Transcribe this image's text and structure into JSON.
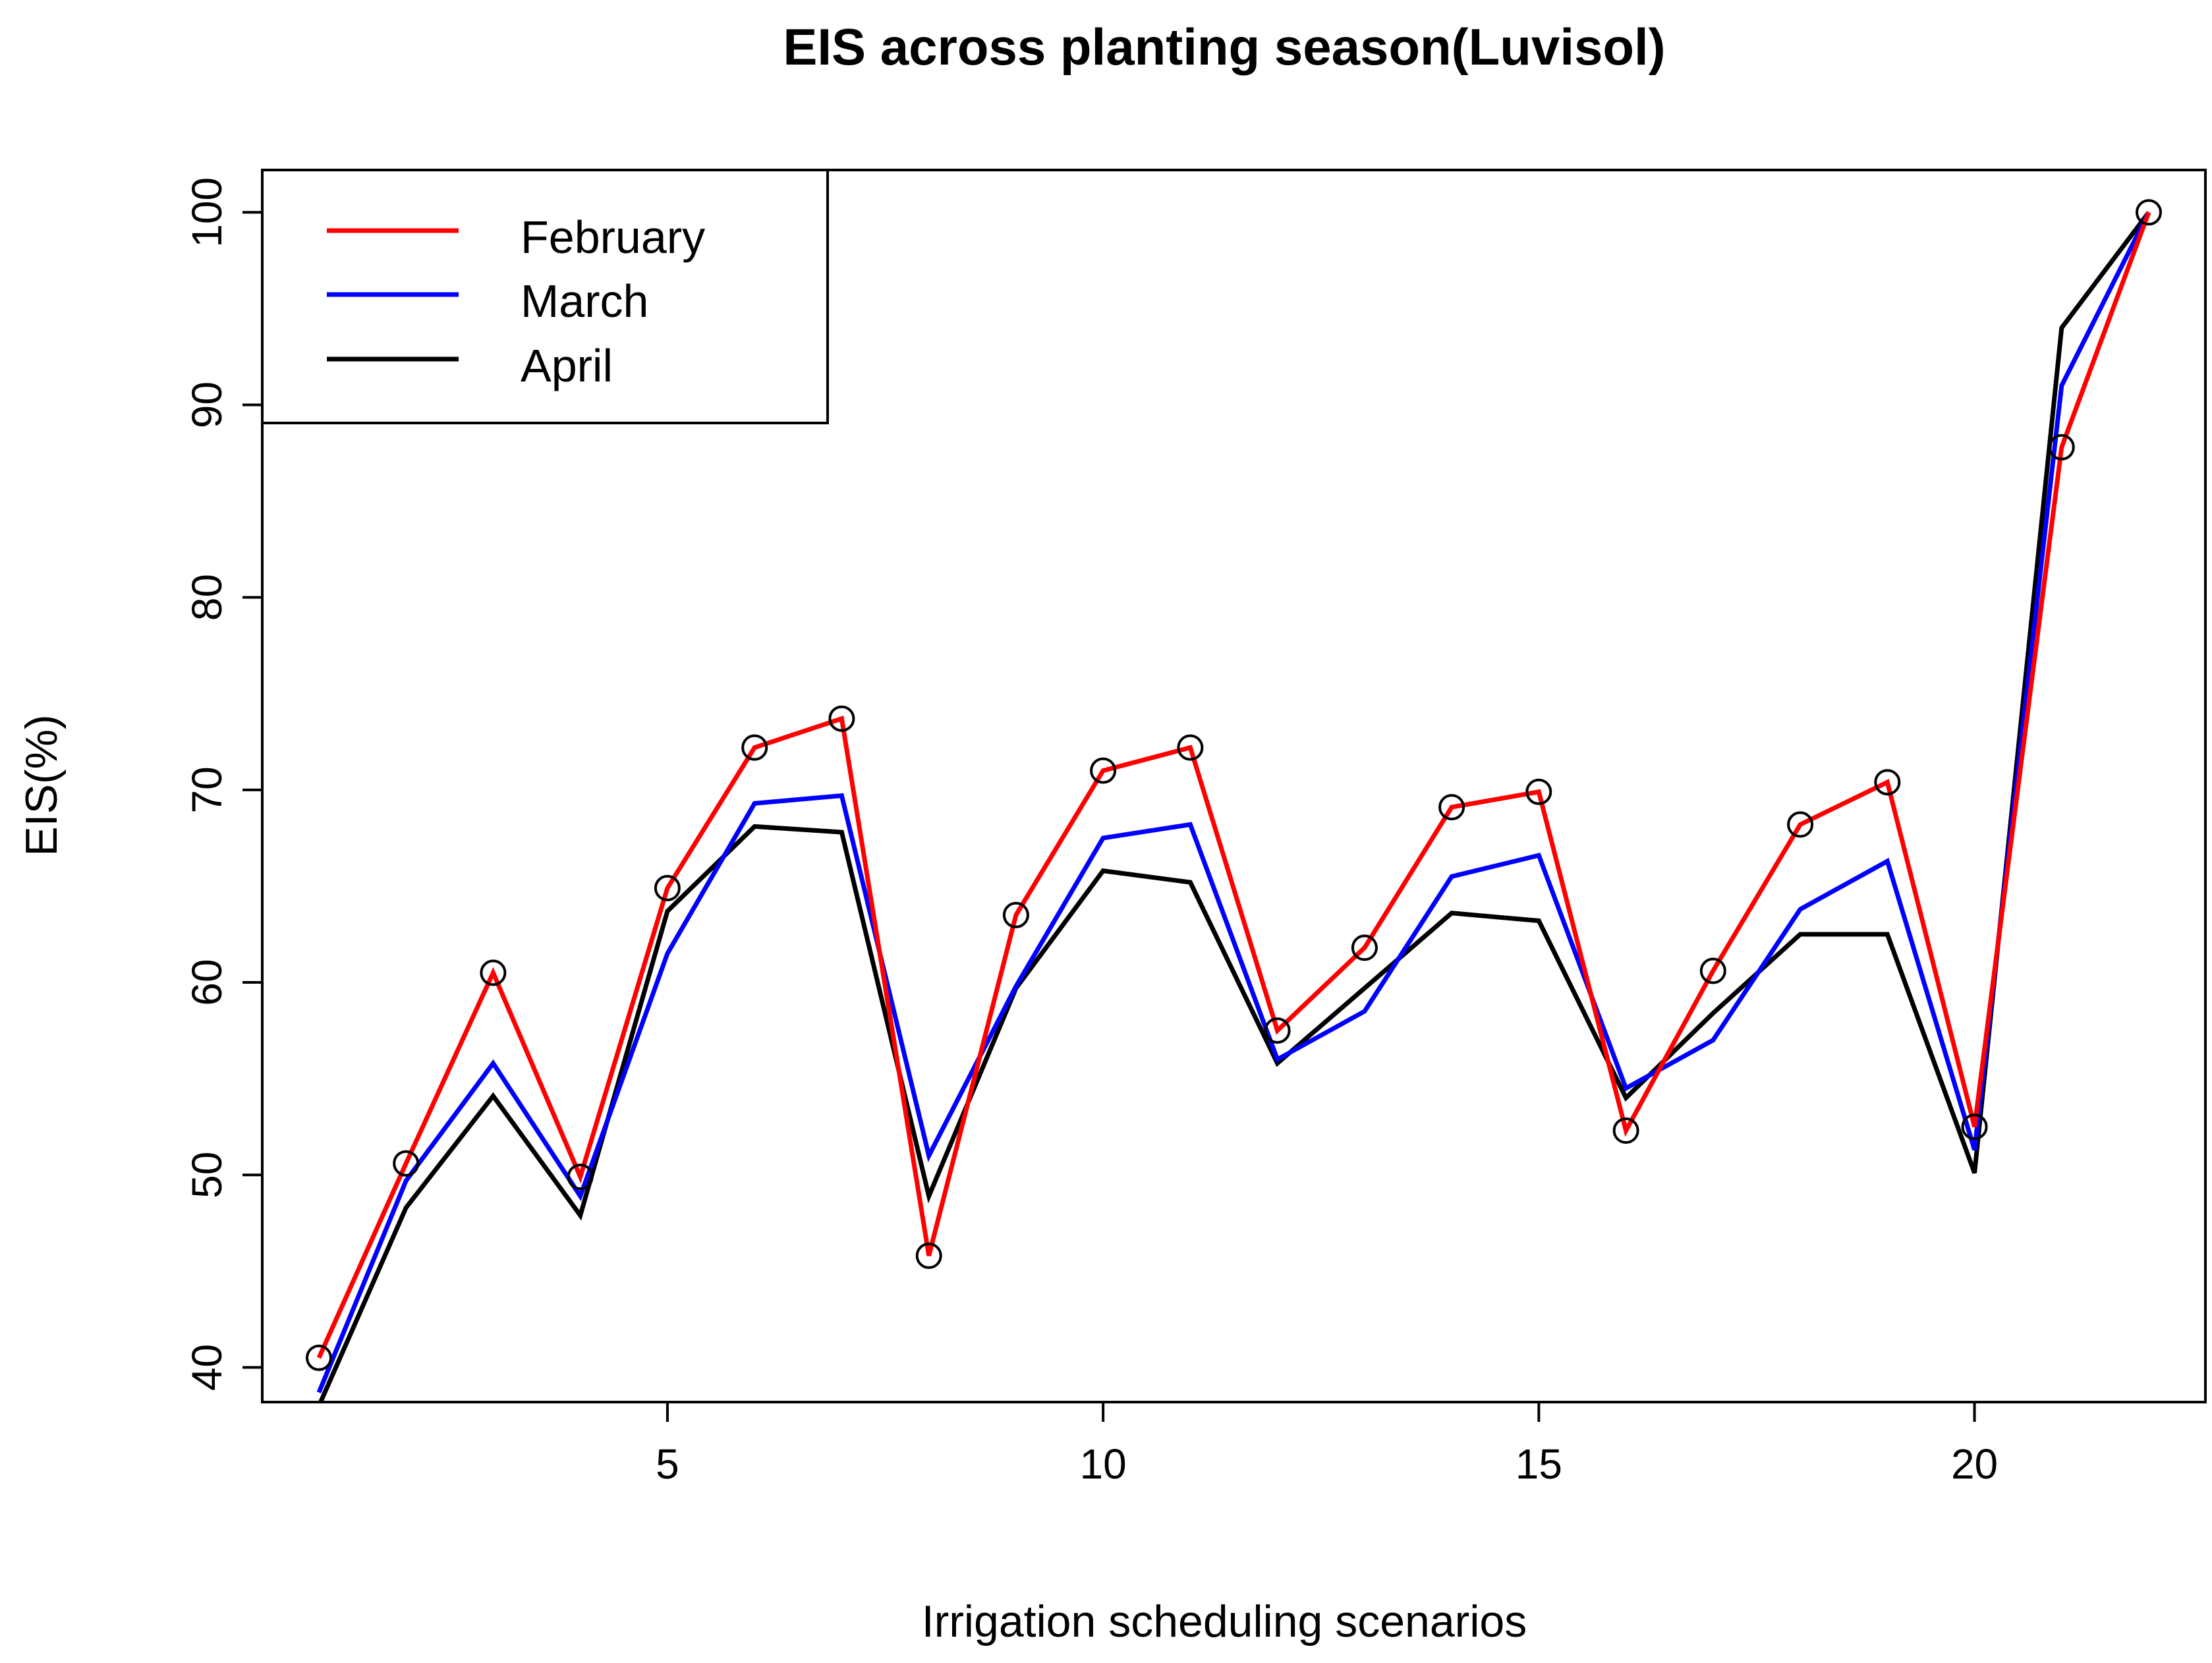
{
  "chart_data": {
    "type": "line",
    "title": "EIS across planting season(Luvisol)",
    "xlabel": "Irrigation scheduling scenarios",
    "ylabel": "EIS(%)",
    "xlim": [
      0.35,
      22.65
    ],
    "ylim": [
      38.2,
      102.2
    ],
    "x": [
      1,
      2,
      3,
      4,
      5,
      6,
      7,
      8,
      9,
      10,
      11,
      12,
      13,
      14,
      15,
      16,
      17,
      18,
      19,
      20,
      21,
      22
    ],
    "x_ticks": [
      5,
      10,
      15,
      20
    ],
    "y_ticks": [
      40,
      50,
      60,
      70,
      80,
      90,
      100
    ],
    "legend_position": "top-left",
    "markers": {
      "series": "February",
      "shape": "open-circle"
    },
    "series": [
      {
        "name": "February",
        "color": "#ff0000",
        "values": [
          40.5,
          50.6,
          60.5,
          49.9,
          64.9,
          72.2,
          73.7,
          45.8,
          63.5,
          71.0,
          72.2,
          57.5,
          61.8,
          69.1,
          69.9,
          52.3,
          60.6,
          68.2,
          70.4,
          52.5,
          87.8,
          100
        ]
      },
      {
        "name": "March",
        "color": "#0000ff",
        "values": [
          38.7,
          49.7,
          55.8,
          48.9,
          61.5,
          69.3,
          69.7,
          51.0,
          59.8,
          67.5,
          68.2,
          56.0,
          58.5,
          65.5,
          66.6,
          54.5,
          57.0,
          63.8,
          66.3,
          51.3,
          91.0,
          100
        ]
      },
      {
        "name": "April",
        "color": "#000000",
        "values": [
          38.0,
          48.3,
          54.1,
          47.9,
          63.7,
          68.1,
          67.8,
          48.9,
          59.7,
          65.8,
          65.2,
          55.8,
          59.7,
          63.6,
          63.2,
          54.0,
          58.4,
          62.5,
          62.5,
          50.1,
          94.0,
          100
        ]
      }
    ]
  }
}
